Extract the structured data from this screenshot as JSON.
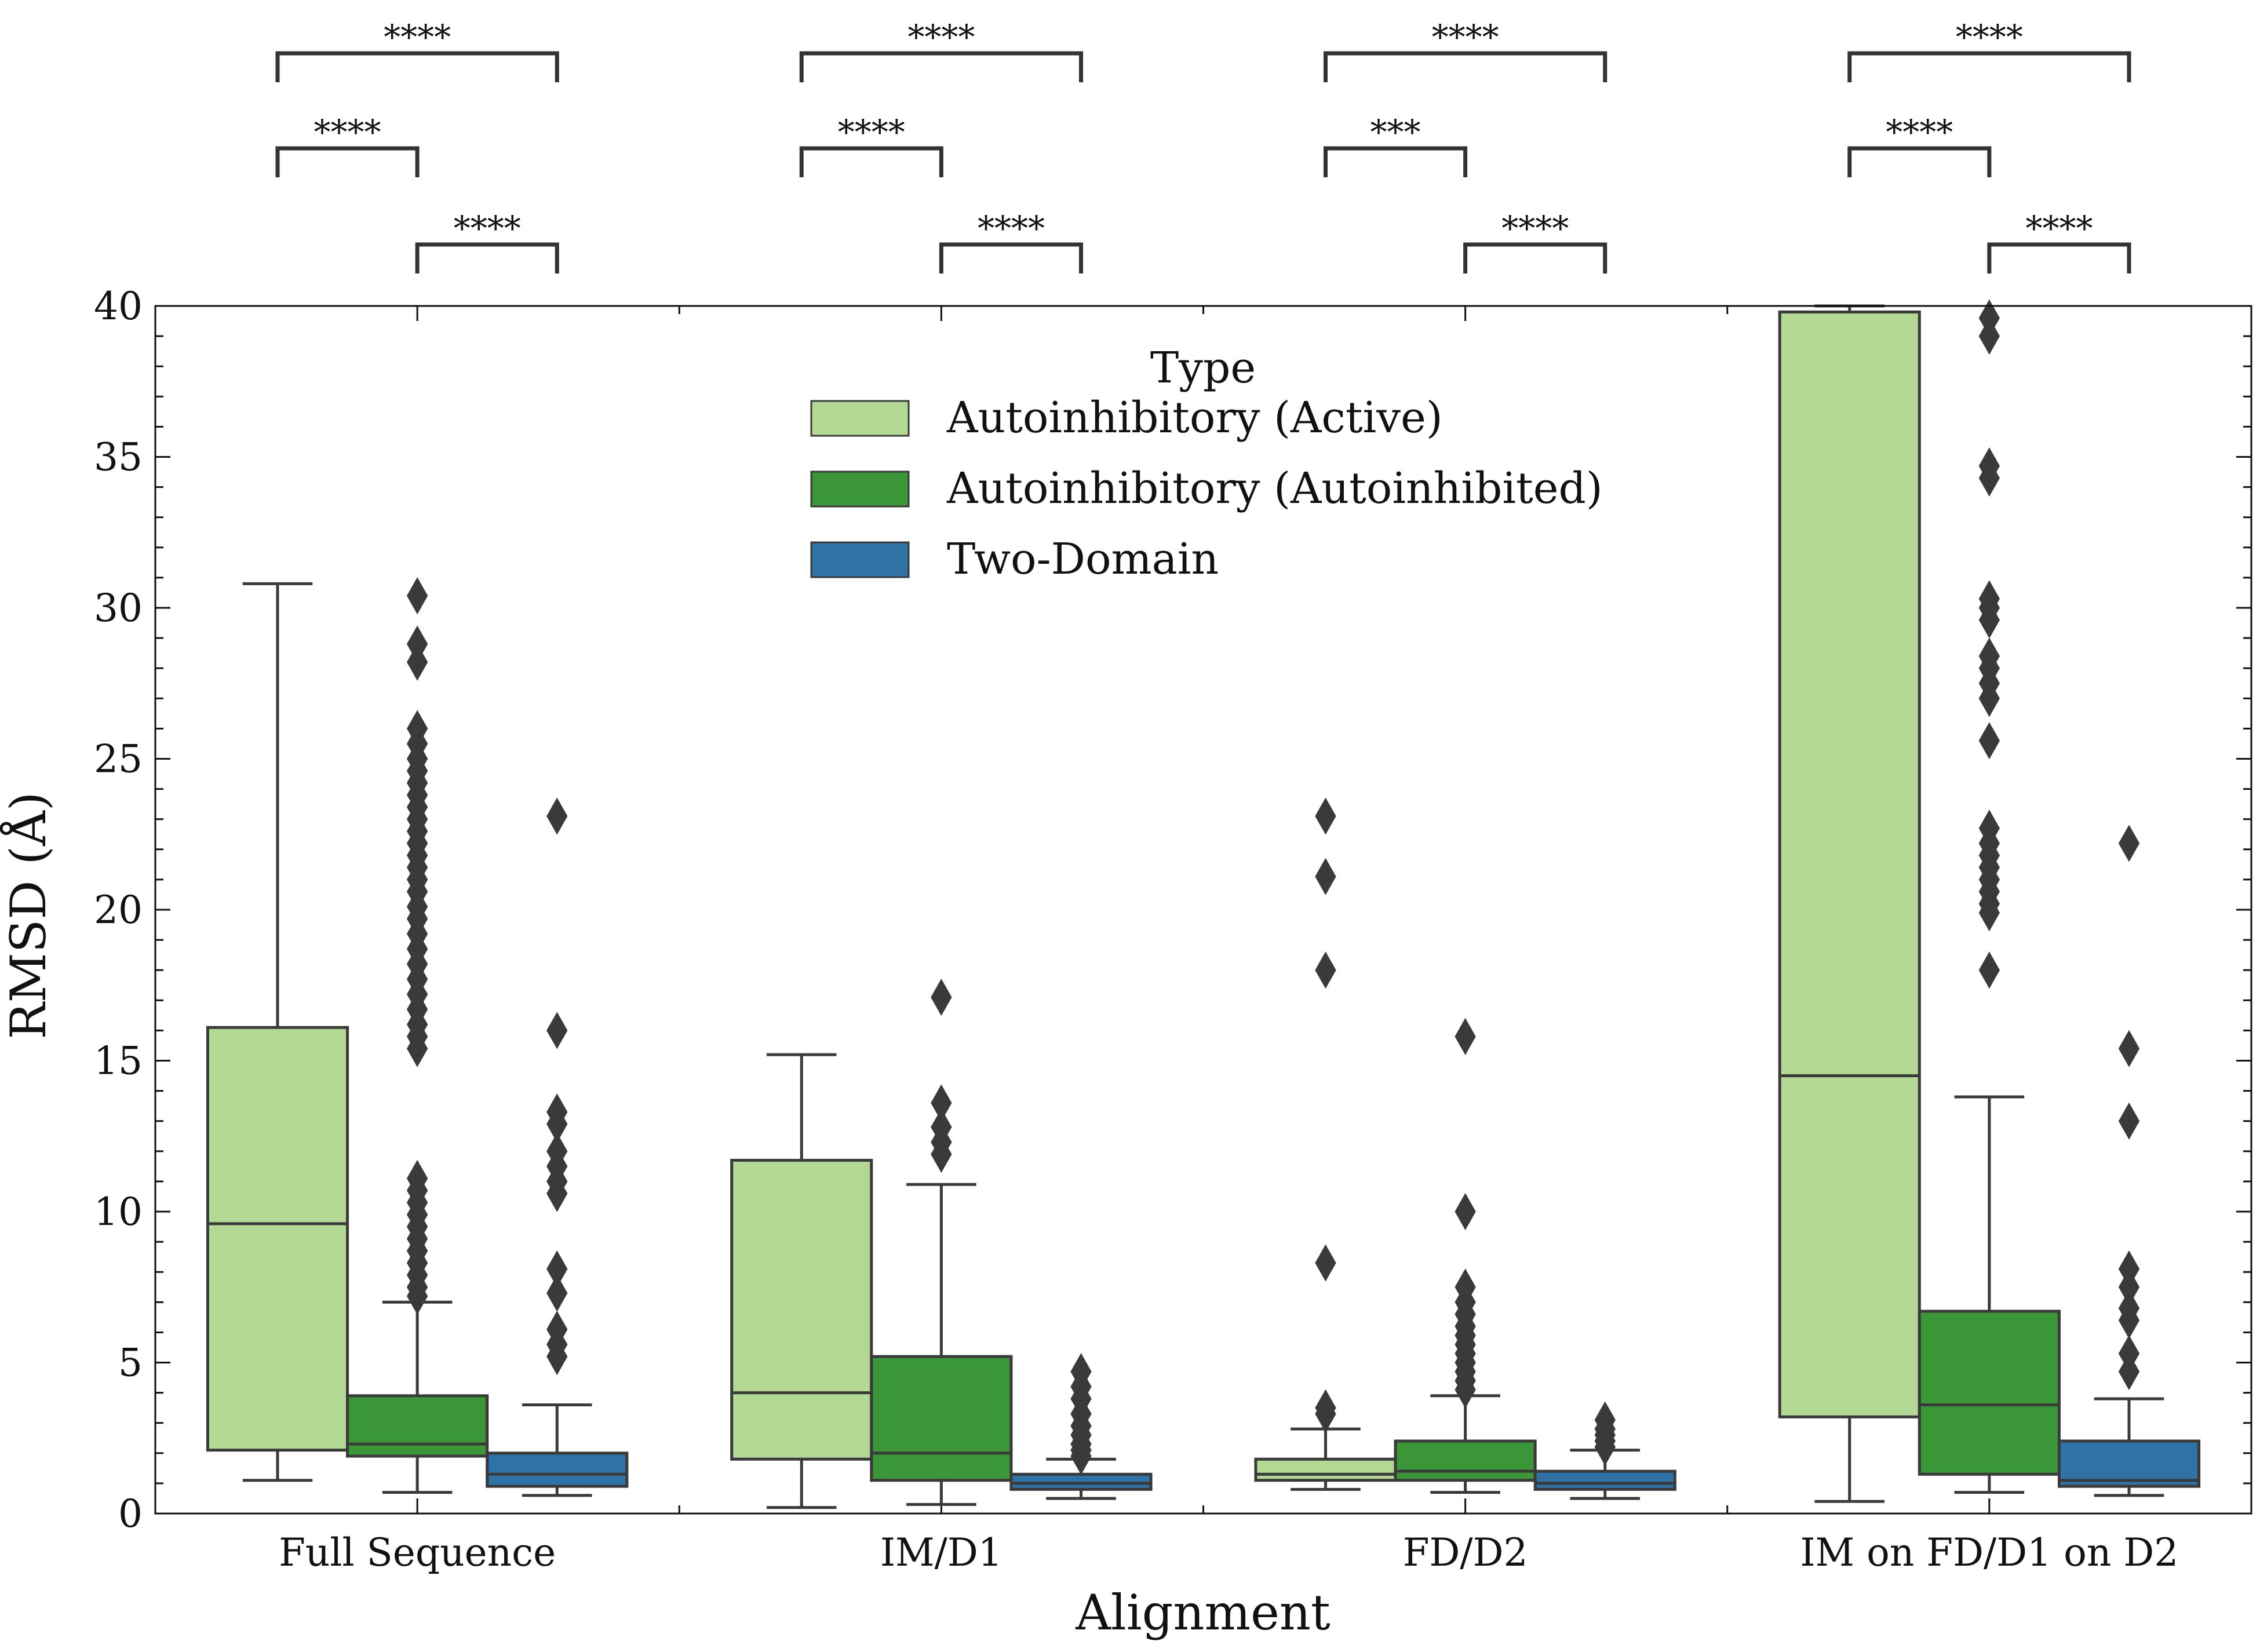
{
  "chart_data": {
    "type": "box",
    "xlabel": "Alignment",
    "ylabel": "RMSD (Å)",
    "ylim": [
      0,
      40
    ],
    "yticks": [
      0,
      5,
      10,
      15,
      20,
      25,
      30,
      35,
      40
    ],
    "categories": [
      "Full Sequence",
      "IM/D1",
      "FD/D2",
      "IM on FD/D1 on D2"
    ],
    "legend": {
      "title": "Type",
      "position": "top-center",
      "entries": [
        "Autoinhibitory (Active)",
        "Autoinhibitory (Autoinhibited)",
        "Two-Domain"
      ]
    },
    "series": [
      {
        "name": "Autoinhibitory (Active)",
        "color": "#b2d893",
        "boxes": [
          {
            "whislo": 1.1,
            "q1": 2.1,
            "med": 9.6,
            "q3": 16.1,
            "whishi": 30.8,
            "fliers": []
          },
          {
            "whislo": 0.2,
            "q1": 1.8,
            "med": 4.0,
            "q3": 11.7,
            "whishi": 15.2,
            "fliers": []
          },
          {
            "whislo": 0.8,
            "q1": 1.1,
            "med": 1.3,
            "q3": 1.8,
            "whishi": 2.8,
            "fliers": [
              3.3,
              3.5,
              8.3,
              18.0,
              21.1,
              23.1
            ]
          },
          {
            "whislo": 0.4,
            "q1": 3.2,
            "med": 14.5,
            "q3": 39.8,
            "whishi": 40.0,
            "fliers": []
          }
        ]
      },
      {
        "name": "Autoinhibitory (Autoinhibited)",
        "color": "#3a9636",
        "boxes": [
          {
            "whislo": 0.7,
            "q1": 1.9,
            "med": 2.3,
            "q3": 3.9,
            "whishi": 7.0,
            "fliers": [
              7.2,
              7.5,
              7.9,
              8.3,
              8.7,
              9.1,
              9.5,
              9.9,
              10.3,
              10.7,
              11.1,
              15.4,
              15.8,
              16.2,
              16.7,
              17.2,
              17.7,
              18.2,
              18.7,
              19.2,
              19.7,
              20.1,
              20.6,
              21.0,
              21.4,
              21.8,
              22.2,
              22.6,
              23.0,
              23.4,
              23.8,
              24.2,
              24.6,
              25.0,
              25.5,
              26.0,
              28.2,
              28.8,
              30.4
            ]
          },
          {
            "whislo": 0.3,
            "q1": 1.1,
            "med": 2.0,
            "q3": 5.2,
            "whishi": 10.9,
            "fliers": [
              11.9,
              12.3,
              12.8,
              13.6,
              17.1
            ]
          },
          {
            "whislo": 0.7,
            "q1": 1.1,
            "med": 1.4,
            "q3": 2.4,
            "whishi": 3.9,
            "fliers": [
              4.1,
              4.4,
              4.7,
              5.0,
              5.3,
              5.6,
              5.9,
              6.2,
              6.6,
              7.0,
              7.5,
              10.0,
              15.8
            ]
          },
          {
            "whislo": 0.7,
            "q1": 1.3,
            "med": 3.6,
            "q3": 6.7,
            "whishi": 13.8,
            "fliers": [
              18.0,
              19.9,
              20.2,
              20.6,
              21.0,
              21.4,
              21.8,
              22.2,
              22.7,
              25.6,
              27.0,
              27.5,
              28.0,
              28.4,
              29.6,
              30.0,
              30.3,
              34.3,
              34.7,
              39.0,
              39.6
            ]
          }
        ]
      },
      {
        "name": "Two-Domain",
        "color": "#2e72a6",
        "boxes": [
          {
            "whislo": 0.6,
            "q1": 0.9,
            "med": 1.3,
            "q3": 2.0,
            "whishi": 3.6,
            "fliers": [
              5.2,
              5.6,
              6.1,
              7.3,
              8.1,
              10.6,
              11.0,
              11.5,
              12.0,
              12.9,
              13.3,
              16.0,
              23.1
            ]
          },
          {
            "whislo": 0.5,
            "q1": 0.8,
            "med": 1.0,
            "q3": 1.3,
            "whishi": 1.8,
            "fliers": [
              1.9,
              2.1,
              2.3,
              2.6,
              2.9,
              3.3,
              3.8,
              4.2,
              4.7
            ]
          },
          {
            "whislo": 0.5,
            "q1": 0.8,
            "med": 1.0,
            "q3": 1.4,
            "whishi": 2.1,
            "fliers": [
              2.2,
              2.4,
              2.6,
              2.8,
              3.1
            ]
          },
          {
            "whislo": 0.6,
            "q1": 0.9,
            "med": 1.1,
            "q3": 2.4,
            "whishi": 3.8,
            "fliers": [
              4.7,
              5.3,
              6.4,
              6.8,
              7.5,
              8.1,
              13.0,
              15.4,
              22.2
            ]
          }
        ]
      }
    ],
    "annotations": [
      {
        "group": 0,
        "from": 0,
        "to": 2,
        "label": "****"
      },
      {
        "group": 0,
        "from": 0,
        "to": 1,
        "label": "****"
      },
      {
        "group": 0,
        "from": 1,
        "to": 2,
        "label": "****"
      },
      {
        "group": 1,
        "from": 0,
        "to": 2,
        "label": "****"
      },
      {
        "group": 1,
        "from": 0,
        "to": 1,
        "label": "****"
      },
      {
        "group": 1,
        "from": 1,
        "to": 2,
        "label": "****"
      },
      {
        "group": 2,
        "from": 0,
        "to": 2,
        "label": "****"
      },
      {
        "group": 2,
        "from": 0,
        "to": 1,
        "label": "***"
      },
      {
        "group": 2,
        "from": 1,
        "to": 2,
        "label": "****"
      },
      {
        "group": 3,
        "from": 0,
        "to": 2,
        "label": "****"
      },
      {
        "group": 3,
        "from": 0,
        "to": 1,
        "label": "****"
      },
      {
        "group": 3,
        "from": 1,
        "to": 2,
        "label": "****"
      }
    ]
  }
}
